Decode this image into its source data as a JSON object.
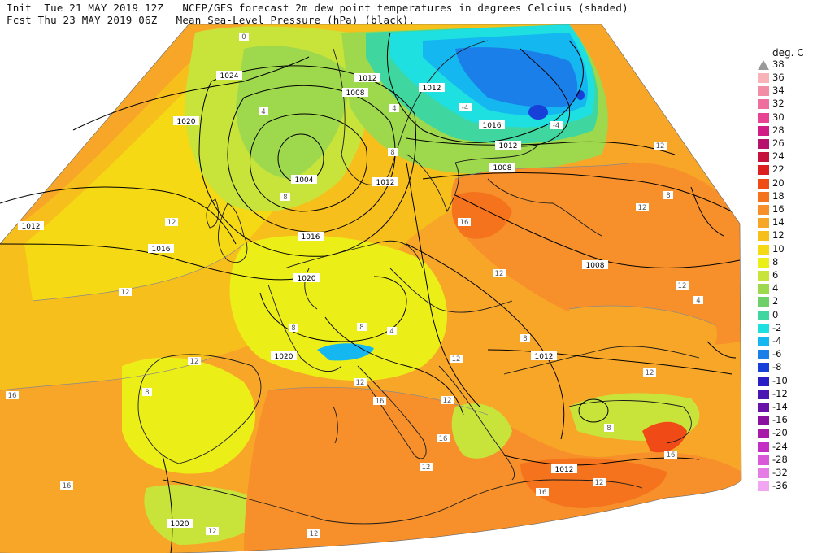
{
  "header": {
    "line1": "Init  Tue 21 MAY 2019 12Z   NCEP/GFS forecast 2m dew point temperatures in degrees Celcius (shaded)",
    "line2": "Fcst Thu 23 MAY 2019 06Z   Mean Sea-Level Pressure (hPa) (black)."
  },
  "legend": {
    "title": "deg. C",
    "arrow_label": "38",
    "entries": [
      {
        "label": "36",
        "color": "#f7b3b8"
      },
      {
        "label": "34",
        "color": "#f28da6"
      },
      {
        "label": "32",
        "color": "#ee6f9d"
      },
      {
        "label": "30",
        "color": "#e84393"
      },
      {
        "label": "28",
        "color": "#d11c86"
      },
      {
        "label": "26",
        "color": "#b5126e"
      },
      {
        "label": "24",
        "color": "#c4123c"
      },
      {
        "label": "22",
        "color": "#dc1f1f"
      },
      {
        "label": "20",
        "color": "#f04a17"
      },
      {
        "label": "18",
        "color": "#f5731c"
      },
      {
        "label": "16",
        "color": "#f7902a"
      },
      {
        "label": "14",
        "color": "#f8a628"
      },
      {
        "label": "12",
        "color": "#f7bf1c"
      },
      {
        "label": "10",
        "color": "#f4d914"
      },
      {
        "label": "8",
        "color": "#ecee18"
      },
      {
        "label": "6",
        "color": "#c8e43a"
      },
      {
        "label": "4",
        "color": "#9ed84c"
      },
      {
        "label": "2",
        "color": "#6fd06a"
      },
      {
        "label": "0",
        "color": "#3fd6a0"
      },
      {
        "label": "-2",
        "color": "#1fe0e0"
      },
      {
        "label": "-4",
        "color": "#14b7f0"
      },
      {
        "label": "-6",
        "color": "#1a7fe8"
      },
      {
        "label": "-8",
        "color": "#1740d8"
      },
      {
        "label": "-10",
        "color": "#2a1fc4"
      },
      {
        "label": "-12",
        "color": "#4a15b0"
      },
      {
        "label": "-14",
        "color": "#6a12a8"
      },
      {
        "label": "-16",
        "color": "#8a10a0"
      },
      {
        "label": "-20",
        "color": "#a81aa8"
      },
      {
        "label": "-24",
        "color": "#c42ec4"
      },
      {
        "label": "-28",
        "color": "#d85ad8"
      },
      {
        "label": "-32",
        "color": "#e67ce6"
      },
      {
        "label": "-36",
        "color": "#f2a6f2"
      }
    ]
  },
  "isobar_labels": [
    "1024",
    "1012",
    "1008",
    "1020",
    "1004",
    "1012",
    "1012",
    "1016",
    "1016",
    "1020",
    "1020",
    "1012",
    "1008",
    "1012",
    "1008",
    "1012",
    "1016",
    "1012",
    "1020",
    "1024"
  ],
  "dewpoint_labels": [
    "0",
    "4",
    "4",
    "-4",
    "-4",
    "8",
    "8",
    "12",
    "12",
    "12",
    "12",
    "16",
    "16",
    "12",
    "8",
    "12",
    "12",
    "12",
    "16",
    "12",
    "12",
    "12",
    "16",
    "16",
    "12",
    "8",
    "4",
    "8",
    "12",
    "16",
    "16",
    "12",
    "12",
    "4",
    "8",
    "8",
    "8"
  ]
}
